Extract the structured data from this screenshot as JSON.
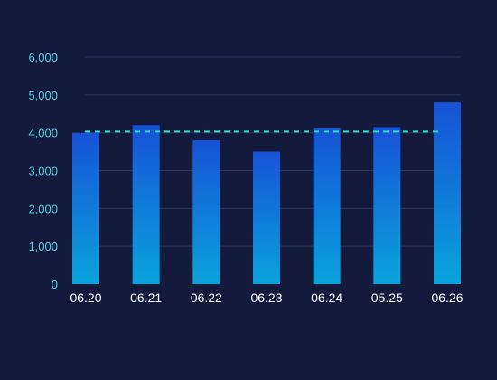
{
  "chart_data": {
    "type": "bar",
    "categories": [
      "06.20",
      "06.21",
      "06.22",
      "06.23",
      "06.24",
      "05.25",
      "06.26"
    ],
    "values": [
      4000,
      4200,
      3800,
      3500,
      4120,
      4150,
      4800
    ],
    "ylim": [
      0,
      6000
    ],
    "y_ticks": [
      0,
      1000,
      2000,
      3000,
      4000,
      5000,
      6000
    ],
    "y_tick_labels": [
      "0",
      "1,000",
      "2,000",
      "3,000",
      "4,000",
      "5,000",
      "6,000"
    ],
    "reference_line": {
      "value": 4030,
      "style": "dashed"
    },
    "grid": true,
    "colors": {
      "background": "#131a3c",
      "bar_top": "#1652d6",
      "bar_bottom": "#0aa3dc",
      "reference_line": "#2ee0c0",
      "y_tick_text": "#4fd0e6",
      "x_tick_text": "#ffffff",
      "grid": "#2a3560"
    }
  }
}
